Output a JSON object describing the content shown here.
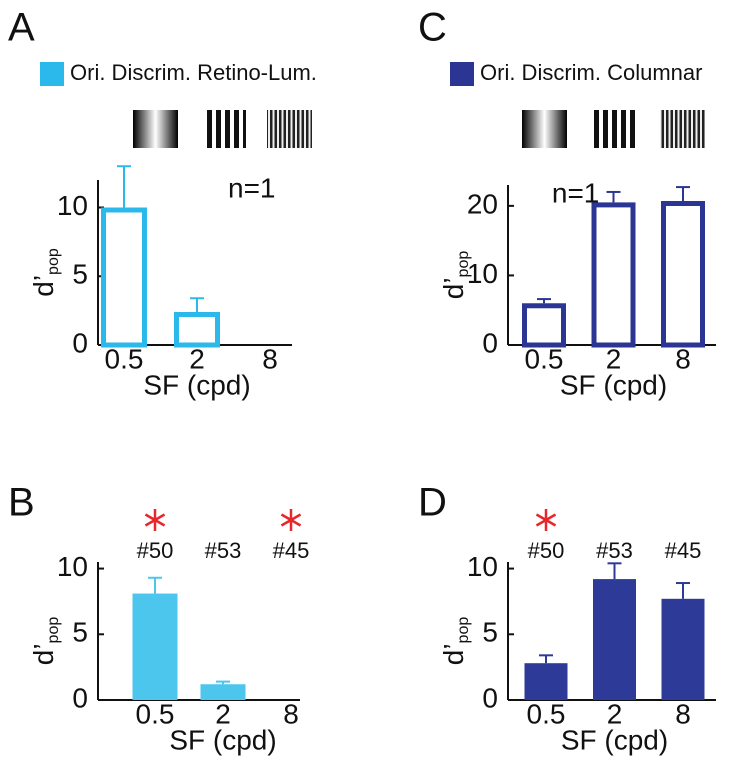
{
  "chart_data": [
    {
      "type": "bar",
      "label": "A",
      "style": "outline",
      "series": [
        {
          "name": "Ori. Discrim. Retino-Lum.",
          "color": "#2bb8ea",
          "values": [
            10,
            2.4,
            null
          ],
          "errors": [
            3,
            1,
            null
          ]
        }
      ],
      "categories": [
        "0.5",
        "2",
        "8"
      ],
      "ylim": [
        0,
        12
      ],
      "yticks": [
        0,
        5,
        10
      ],
      "xlabel": "SF (cpd)",
      "ylabel": "d’",
      "ylabel_sub": "pop",
      "annotation": "n=1"
    },
    {
      "type": "bar",
      "label": "B",
      "style": "filled",
      "color": "#4dc6ee",
      "values": [
        8.1,
        1.2,
        null
      ],
      "errors": [
        1.2,
        0.2,
        null
      ],
      "categories": [
        "0.5",
        "2",
        "8"
      ],
      "ylim": [
        0,
        10.5
      ],
      "yticks": [
        0,
        5,
        10
      ],
      "xlabel": "SF (cpd)",
      "ylabel": "d’",
      "ylabel_sub": "pop",
      "bar_labels": [
        "#50",
        "#53",
        "#45"
      ],
      "significant": [
        true,
        false,
        true
      ],
      "star_color": "#e8262b"
    },
    {
      "type": "bar",
      "label": "C",
      "style": "outline",
      "series": [
        {
          "name": "Ori. Discrim. Columnar",
          "color": "#2b3593",
          "values": [
            6,
            20.5,
            20.7
          ],
          "errors": [
            0.6,
            1.5,
            2
          ]
        }
      ],
      "categories": [
        "0.5",
        "2",
        "8"
      ],
      "ylim": [
        0,
        23
      ],
      "yticks": [
        0,
        10,
        20
      ],
      "xlabel": "SF (cpd)",
      "ylabel": "d’",
      "ylabel_sub": "pop",
      "annotation": "n=1"
    },
    {
      "type": "bar",
      "label": "D",
      "style": "filled",
      "color": "#2e3a97",
      "values": [
        2.8,
        9.2,
        7.7
      ],
      "errors": [
        0.6,
        1.2,
        1.2
      ],
      "categories": [
        "0.5",
        "2",
        "8"
      ],
      "ylim": [
        0,
        10.5
      ],
      "yticks": [
        0,
        5,
        10
      ],
      "xlabel": "SF (cpd)",
      "ylabel": "d’",
      "ylabel_sub": "pop",
      "bar_labels": [
        "#50",
        "#53",
        "#45"
      ],
      "significant": [
        true,
        false,
        false
      ],
      "star_color": "#e8262b"
    }
  ]
}
